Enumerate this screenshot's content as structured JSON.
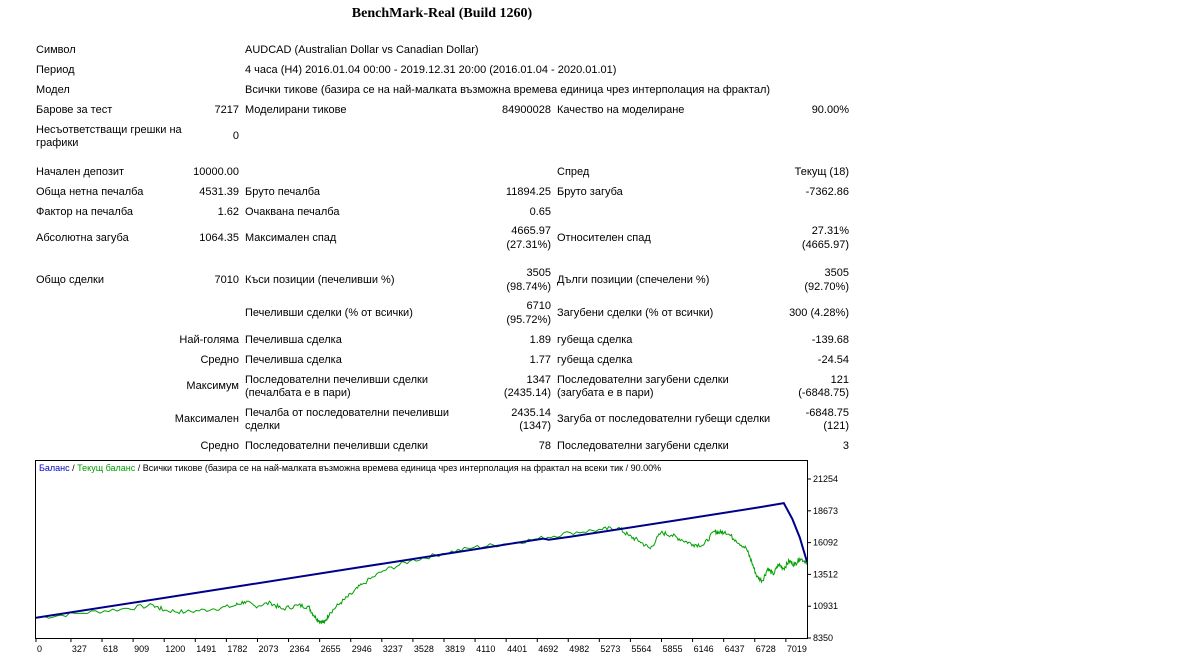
{
  "report": {
    "title": "BenchMark-Real (Build 1260)",
    "symbol_label": "Символ",
    "symbol_value": "AUDCAD (Australian Dollar vs Canadian Dollar)",
    "period_label": "Период",
    "period_value": "4 часа (H4) 2016.01.04 00:00 - 2019.12.31 20:00 (2016.01.04 - 2020.01.01)",
    "model_label": "Модел",
    "model_value": "Всички тикове (базира се на най-малката възможна времева единица чрез интерполация на фрактал)",
    "bars_label": "Барове за тест",
    "bars_value": "7217",
    "ticks_label": "Моделирани тикове",
    "ticks_value": "84900028",
    "quality_label": "Качество на моделиране",
    "quality_value": "90.00%",
    "mismatch_label_1": "Несъответстващи грешки на",
    "mismatch_label_2": "графики",
    "mismatch_value": "0",
    "deposit_label": "Начален депозит",
    "deposit_value": "10000.00",
    "spread_label": "Спред",
    "spread_value": "Текущ (18)",
    "net_profit_label": "Обща нетна печалба",
    "net_profit_value": "4531.39",
    "gross_profit_label": "Бруто печалба",
    "gross_profit_value": "11894.25",
    "gross_loss_label": "Бруто загуба",
    "gross_loss_value": "-7362.86",
    "profit_factor_label": "Фактор на печалба",
    "profit_factor_value": "1.62",
    "expected_payoff_label": "Очаквана печалба",
    "expected_payoff_value": "0.65",
    "abs_dd_label": "Абсолютна загуба",
    "abs_dd_value": "1064.35",
    "max_dd_label": "Максимален спад",
    "max_dd_value_1": "4665.97",
    "max_dd_value_2": "(27.31%)",
    "rel_dd_label": "Относителен спад",
    "rel_dd_value_1": "27.31%",
    "rel_dd_value_2": "(4665.97)",
    "total_trades_label": "Общо сделки",
    "total_trades_value": "7010",
    "short_label": "Къси позиции (печеливши %)",
    "short_value_1": "3505",
    "short_value_2": "(98.74%)",
    "long_label": "Дълги позиции (спечелени %)",
    "long_value_1": "3505",
    "long_value_2": "(92.70%)",
    "win_trades_label": "Печеливши сделки (% от всички)",
    "win_trades_value_1": "6710",
    "win_trades_value_2": "(95.72%)",
    "loss_trades_label": "Загубени сделки (% от всички)",
    "loss_trades_value": "300 (4.28%)",
    "largest_label": "Най-голяма",
    "largest_win_label": "Печеливша сделка",
    "largest_win_value": "1.89",
    "largest_loss_label": "губеща сделка",
    "largest_loss_value": "-139.68",
    "average_label": "Средно",
    "avg_win_label": "Печеливша сделка",
    "avg_win_value": "1.77",
    "avg_loss_label": "губеща сделка",
    "avg_loss_value": "-24.54",
    "maximum_label": "Максимум",
    "max_consec_win_label_1": "Последователни печеливши сделки",
    "max_consec_win_label_2": "(печалбата е в пари)",
    "max_consec_win_value_1": "1347",
    "max_consec_win_value_2": "(2435.14)",
    "max_consec_loss_label_1": "Последователни загубени сделки",
    "max_consec_loss_label_2": "(загубата е в пари)",
    "max_consec_loss_value_1": "121",
    "max_consec_loss_value_2": "(-6848.75)",
    "maximal_label": "Максимален",
    "maximal_win_label_1": "Печалба от последователни печеливши",
    "maximal_win_label_2": "сделки",
    "maximal_win_value_1": "2435.14",
    "maximal_win_value_2": "(1347)",
    "maximal_loss_label": "Загуба от последователни губещи сделки",
    "maximal_loss_value_1": "-6848.75",
    "maximal_loss_value_2": "(121)",
    "avg2_label": "Средно",
    "avg_consec_win_label": "Последователни печеливши сделки",
    "avg_consec_win_value": "78",
    "avg_consec_loss_label": "Последователни загубени сделки",
    "avg_consec_loss_value": "3"
  },
  "chart_data": {
    "type": "line",
    "legend": {
      "balance": "Баланс",
      "sep1": " / ",
      "equity": "Текущ баланс",
      "rest": " / Всички тикове (базира се на най-малката възможна времева единица чрез интерполация на фрактал на всеки тик / 90.00%"
    },
    "x_ticks": [
      "0",
      "327",
      "618",
      "909",
      "1200",
      "1491",
      "1782",
      "2073",
      "2364",
      "2655",
      "2946",
      "3237",
      "3528",
      "3819",
      "4110",
      "4401",
      "4692",
      "4982",
      "5273",
      "5564",
      "5855",
      "6146",
      "6437",
      "6728",
      "7019"
    ],
    "y_ticks": [
      "21254",
      "18673",
      "16092",
      "13512",
      "10931",
      "8350"
    ],
    "xlim": [
      0,
      7217
    ],
    "ylim": [
      8350,
      21254
    ],
    "colors": {
      "balance": "#00008b",
      "equity": "#00a000"
    },
    "series": [
      {
        "name": "Баланс",
        "points": [
          [
            0,
            10000
          ],
          [
            1000,
            11340
          ],
          [
            2000,
            12690
          ],
          [
            3000,
            14050
          ],
          [
            4000,
            15400
          ],
          [
            4750,
            16420
          ],
          [
            4800,
            16330
          ],
          [
            5000,
            16560
          ],
          [
            6000,
            17900
          ],
          [
            6800,
            19000
          ],
          [
            7000,
            19300
          ],
          [
            7080,
            18000
          ],
          [
            7150,
            16500
          ],
          [
            7217,
            14531
          ]
        ]
      },
      {
        "name": "Текущ баланс",
        "points": [
          [
            0,
            10000
          ],
          [
            400,
            10350
          ],
          [
            800,
            10700
          ],
          [
            1100,
            11000
          ],
          [
            1200,
            10600
          ],
          [
            1400,
            10450
          ],
          [
            1650,
            10700
          ],
          [
            1850,
            10950
          ],
          [
            1950,
            11300
          ],
          [
            2050,
            10950
          ],
          [
            2200,
            11200
          ],
          [
            2300,
            10700
          ],
          [
            2450,
            11000
          ],
          [
            2550,
            10900
          ],
          [
            2600,
            10200
          ],
          [
            2650,
            9750
          ],
          [
            2700,
            9600
          ],
          [
            2750,
            10400
          ],
          [
            2850,
            11200
          ],
          [
            2950,
            11900
          ],
          [
            3050,
            12700
          ],
          [
            3250,
            13800
          ],
          [
            3500,
            14600
          ],
          [
            3800,
            15200
          ],
          [
            4100,
            15700
          ],
          [
            4400,
            16000
          ],
          [
            4700,
            16400
          ],
          [
            5000,
            16900
          ],
          [
            5300,
            17150
          ],
          [
            5450,
            17300
          ],
          [
            5550,
            16650
          ],
          [
            5650,
            16200
          ],
          [
            5750,
            15600
          ],
          [
            5850,
            16900
          ],
          [
            5950,
            16700
          ],
          [
            6050,
            16300
          ],
          [
            6150,
            15950
          ],
          [
            6250,
            15900
          ],
          [
            6350,
            17000
          ],
          [
            6400,
            16900
          ],
          [
            6450,
            17000
          ],
          [
            6550,
            16300
          ],
          [
            6650,
            15600
          ],
          [
            6700,
            14500
          ],
          [
            6750,
            13300
          ],
          [
            6800,
            13000
          ],
          [
            6850,
            14000
          ],
          [
            6900,
            13500
          ],
          [
            6950,
            14300
          ],
          [
            7000,
            14000
          ],
          [
            7050,
            14600
          ],
          [
            7100,
            14300
          ],
          [
            7150,
            14800
          ],
          [
            7217,
            14531
          ]
        ]
      }
    ]
  }
}
